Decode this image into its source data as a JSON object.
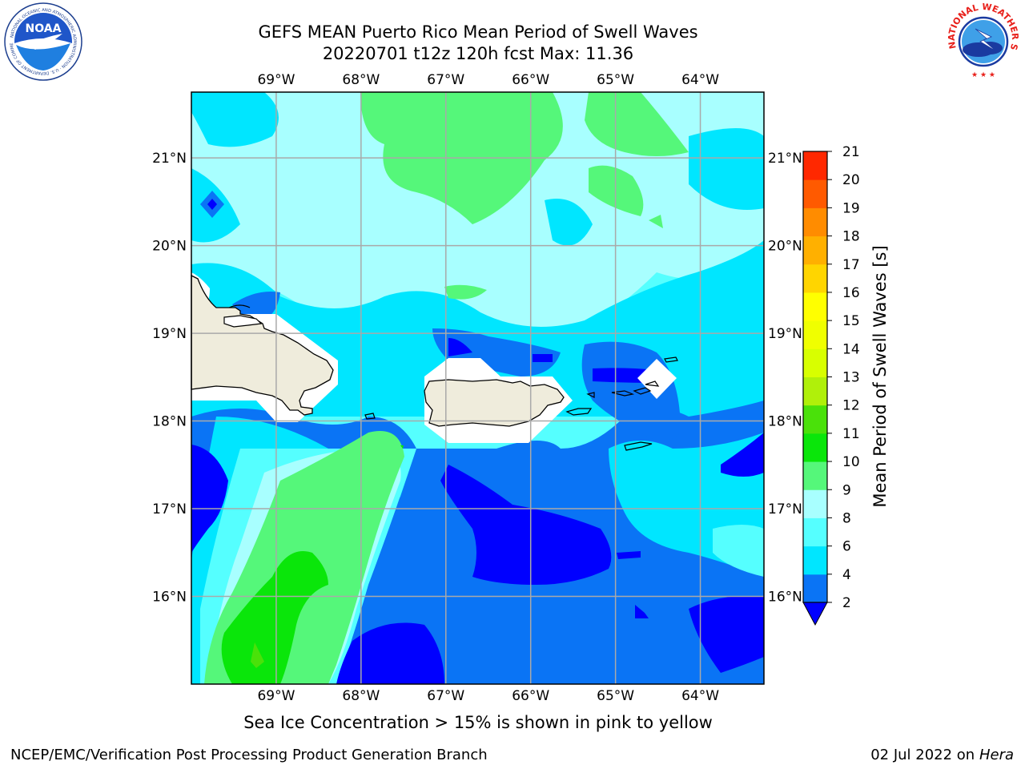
{
  "title": {
    "line1": "GEFS MEAN Puerto Rico Mean Period of Swell Waves",
    "line2": "20220701 t12z 120h fcst   Max: 11.36"
  },
  "map": {
    "lon_labels": [
      "69°W",
      "68°W",
      "67°W",
      "66°W",
      "65°W",
      "64°W"
    ],
    "lat_labels": [
      "21°N",
      "20°N",
      "19°N",
      "18°N",
      "17°N",
      "16°N"
    ],
    "lon_range": [
      -70.0,
      -63.25
    ],
    "lat_range": [
      15.0,
      21.75
    ],
    "grid": true,
    "land_color": "#efecdc",
    "coast_color": "#000000"
  },
  "colorbar": {
    "label": "Mean Period of Swell Waves [s]",
    "ticks": [
      "2",
      "4",
      "6",
      "8",
      "9",
      "10",
      "11",
      "12",
      "13",
      "14",
      "15",
      "16",
      "17",
      "18",
      "19",
      "20",
      "21"
    ],
    "colors": [
      "#0a74f5",
      "#00e6ff",
      "#55ffff",
      "#a8ffff",
      "#55f77a",
      "#0ae60a",
      "#4ae10a",
      "#b0f00a",
      "#d8ff00",
      "#f0ff00",
      "#ffff00",
      "#ffd500",
      "#ffb000",
      "#ff8c00",
      "#ff5a00",
      "#ff2800"
    ],
    "under_color": "#0000ff",
    "extend": "min"
  },
  "ice_note": "Sea Ice Concentration > 15% is shown in pink to yellow",
  "footer": {
    "left": "NCEP/EMC/Verification Post Processing Product Generation Branch",
    "right_date": "02 Jul 2022 on ",
    "right_machine": "Hera"
  },
  "logos": {
    "noaa_text": "NOAA",
    "nws_text": "NATIONAL WEATHER SERVICE"
  }
}
